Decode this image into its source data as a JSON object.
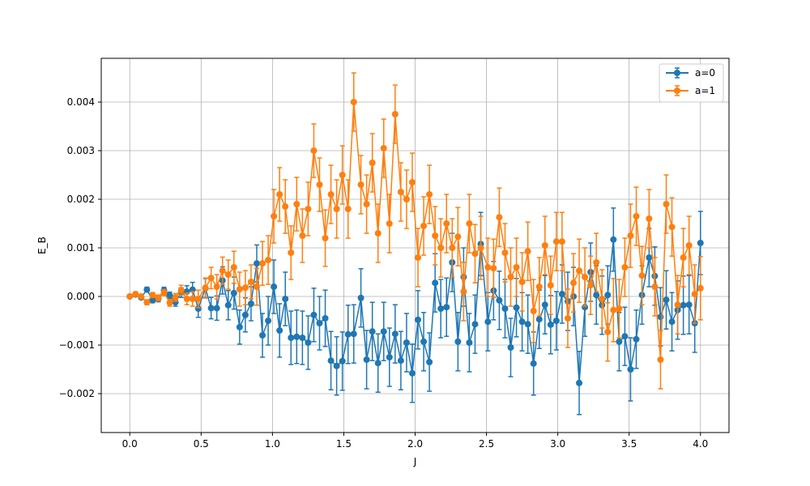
{
  "chart_data": {
    "type": "line",
    "xlabel": "J",
    "ylabel": "E_B",
    "xlim": [
      -0.2,
      4.2
    ],
    "ylim": [
      -0.0028,
      0.0049
    ],
    "xticks": [
      0.0,
      0.5,
      1.0,
      1.5,
      2.0,
      2.5,
      3.0,
      3.5,
      4.0
    ],
    "xtick_labels": [
      "0.0",
      "0.5",
      "1.0",
      "1.5",
      "2.0",
      "2.5",
      "3.0",
      "3.5",
      "4.0"
    ],
    "yticks": [
      -0.002,
      -0.001,
      0.0,
      0.001,
      0.002,
      0.003,
      0.004
    ],
    "ytick_labels": [
      "−0.002",
      "−0.001",
      "0.000",
      "0.001",
      "0.002",
      "0.003",
      "0.004"
    ],
    "grid": true,
    "legend_position": "top-right",
    "x": [
      0.0,
      0.04,
      0.08,
      0.12,
      0.16,
      0.2,
      0.24,
      0.28,
      0.32,
      0.36,
      0.4,
      0.44,
      0.48,
      0.53,
      0.57,
      0.61,
      0.65,
      0.69,
      0.73,
      0.77,
      0.81,
      0.85,
      0.89,
      0.93,
      0.97,
      1.01,
      1.05,
      1.09,
      1.13,
      1.17,
      1.21,
      1.25,
      1.29,
      1.33,
      1.37,
      1.41,
      1.45,
      1.49,
      1.53,
      1.57,
      1.62,
      1.66,
      1.7,
      1.74,
      1.78,
      1.82,
      1.86,
      1.9,
      1.94,
      1.98,
      2.02,
      2.06,
      2.1,
      2.14,
      2.18,
      2.22,
      2.26,
      2.3,
      2.34,
      2.38,
      2.42,
      2.46,
      2.51,
      2.55,
      2.59,
      2.63,
      2.67,
      2.71,
      2.75,
      2.79,
      2.83,
      2.87,
      2.91,
      2.95,
      2.99,
      3.03,
      3.07,
      3.11,
      3.15,
      3.19,
      3.23,
      3.27,
      3.31,
      3.35,
      3.39,
      3.43,
      3.47,
      3.51,
      3.55,
      3.59,
      3.64,
      3.68,
      3.72,
      3.76,
      3.8,
      3.84,
      3.88,
      3.92,
      3.96,
      4.0
    ],
    "series": [
      {
        "name": "a=0",
        "color": "#1f77b4",
        "values": [
          0.0,
          4e-05,
          -2e-05,
          0.00014,
          -8e-05,
          -5e-05,
          0.00013,
          2e-05,
          -0.00012,
          8e-05,
          0.0001,
          0.00014,
          -0.00025,
          0.00017,
          -0.00024,
          -0.00024,
          0.00033,
          -0.00018,
          7e-05,
          -0.00063,
          -0.00038,
          -0.00015,
          0.00068,
          -0.0008,
          -0.0005,
          0.0002,
          -0.0007,
          -5e-05,
          -0.00085,
          -0.00083,
          -0.00085,
          -0.00095,
          -0.00038,
          -0.00055,
          -0.00045,
          -0.00132,
          -0.00143,
          -0.00133,
          -0.00078,
          -0.00077,
          -3e-05,
          -0.0013,
          -0.00072,
          -0.00137,
          -0.00072,
          -0.00125,
          -0.00077,
          -0.00132,
          -0.00095,
          -0.00158,
          -0.00048,
          -0.00093,
          -0.00135,
          0.00028,
          -0.00025,
          -0.00022,
          0.0007,
          -0.00093,
          0.0004,
          -0.00095,
          -0.00057,
          0.00108,
          -0.00052,
          0.00012,
          -8e-05,
          -0.00025,
          -0.00105,
          -0.00023,
          -0.00052,
          -0.00057,
          -0.00138,
          -0.00047,
          -0.00017,
          -0.00058,
          -0.0005,
          5e-05,
          -0.0001,
          0.0,
          -0.00178,
          -0.00022,
          0.0005,
          3e-05,
          -0.00018,
          3e-05,
          0.00117,
          -0.00093,
          -0.00082,
          -0.0015,
          -0.00088,
          3e-05,
          0.0008,
          0.00042,
          -0.00042,
          -7e-05,
          -0.00052,
          -0.00028,
          -0.00018,
          -0.00017,
          -0.00055,
          0.0011
        ],
        "errors": [
          0.0,
          4e-05,
          4e-05,
          5e-05,
          5e-05,
          6e-05,
          6e-05,
          7e-05,
          8e-05,
          0.0001,
          0.00012,
          0.00015,
          0.00018,
          0.0002,
          0.00022,
          0.00025,
          0.00028,
          0.0003,
          0.00033,
          0.00035,
          0.00035,
          0.00035,
          0.00038,
          0.00045,
          0.0005,
          0.00055,
          0.00055,
          0.00055,
          0.00055,
          0.00055,
          0.00055,
          0.00055,
          0.00055,
          0.00055,
          0.00058,
          0.0006,
          0.0006,
          0.0006,
          0.0006,
          0.0006,
          0.0006,
          0.0006,
          0.0006,
          0.0006,
          0.0006,
          0.0006,
          0.0006,
          0.0006,
          0.0006,
          0.0006,
          0.0006,
          0.0006,
          0.0006,
          0.0006,
          0.0006,
          0.0006,
          0.0006,
          0.0006,
          0.0006,
          0.0006,
          0.0006,
          0.00065,
          0.0006,
          0.0006,
          0.0006,
          0.0006,
          0.0006,
          0.0006,
          0.0006,
          0.0006,
          0.00065,
          0.0006,
          0.0006,
          0.0006,
          0.0006,
          0.0006,
          0.0006,
          0.0006,
          0.00065,
          0.0006,
          0.0006,
          0.0006,
          0.0006,
          0.0006,
          0.00065,
          0.0006,
          0.0006,
          0.00065,
          0.0006,
          0.0006,
          0.0006,
          0.0006,
          0.0006,
          0.0006,
          0.0006,
          0.0006,
          0.0006,
          0.0006,
          0.0006,
          0.00065
        ]
      },
      {
        "name": "a=1",
        "color": "#ff7f0e",
        "values": [
          0.0,
          5e-05,
          0.0,
          -0.00012,
          3e-05,
          -3e-05,
          8e-05,
          -0.00013,
          -2e-05,
          0.00013,
          -5e-05,
          -5e-05,
          -5e-05,
          0.00018,
          0.00038,
          0.0002,
          0.00053,
          0.00045,
          0.0006,
          0.00015,
          0.00018,
          0.0003,
          0.0002,
          0.00068,
          0.00075,
          0.00165,
          0.0021,
          0.00185,
          0.0009,
          0.0019,
          0.00125,
          0.0018,
          0.003,
          0.0023,
          0.0012,
          0.0021,
          0.0018,
          0.0025,
          0.0018,
          0.004,
          0.0023,
          0.0019,
          0.00275,
          0.0013,
          0.00305,
          0.0015,
          0.00375,
          0.00215,
          0.002,
          0.00235,
          0.0008,
          0.00145,
          0.0021,
          0.00125,
          0.001,
          0.0015,
          0.001,
          0.00123,
          0.0001,
          0.0015,
          0.00088,
          0.001,
          0.0006,
          0.00058,
          0.00163,
          0.0009,
          0.0004,
          0.0006,
          0.0003,
          0.00093,
          -0.0003,
          0.0002,
          0.00105,
          0.00023,
          0.00113,
          0.00113,
          -0.00045,
          0.00028,
          0.00053,
          0.0004,
          0.00023,
          0.0007,
          -5e-05,
          -0.00073,
          -0.00028,
          -0.00025,
          0.0006,
          0.00125,
          0.00165,
          0.00043,
          0.0016,
          0.0002,
          -0.0013,
          0.0019,
          0.00143,
          -0.00017,
          0.0008,
          0.00105,
          5e-05,
          0.00017
        ],
        "errors": [
          0.0,
          4e-05,
          4e-05,
          5e-05,
          5e-05,
          6e-05,
          6e-05,
          7e-05,
          8e-05,
          0.0001,
          0.00012,
          0.00015,
          0.00018,
          0.0002,
          0.00022,
          0.00025,
          0.00028,
          0.0003,
          0.00033,
          0.00035,
          0.00035,
          0.00035,
          0.00038,
          0.00045,
          0.0005,
          0.00055,
          0.00055,
          0.00055,
          0.00055,
          0.00055,
          0.00055,
          0.00055,
          0.00055,
          0.00055,
          0.00058,
          0.0006,
          0.0006,
          0.0006,
          0.0006,
          0.0006,
          0.0006,
          0.0006,
          0.0006,
          0.0006,
          0.0006,
          0.0006,
          0.0006,
          0.0006,
          0.0006,
          0.0006,
          0.0006,
          0.0006,
          0.0006,
          0.0006,
          0.0006,
          0.0006,
          0.0006,
          0.0006,
          0.0006,
          0.0006,
          0.0006,
          0.00065,
          0.0006,
          0.0006,
          0.0006,
          0.0006,
          0.0006,
          0.0006,
          0.0006,
          0.0006,
          0.00065,
          0.0006,
          0.0006,
          0.0006,
          0.0006,
          0.0006,
          0.0006,
          0.0006,
          0.00065,
          0.0006,
          0.0006,
          0.0006,
          0.0006,
          0.0006,
          0.00065,
          0.0006,
          0.0006,
          0.00065,
          0.0006,
          0.0006,
          0.0006,
          0.0006,
          0.0006,
          0.0006,
          0.0006,
          0.0006,
          0.0006,
          0.0006,
          0.0006,
          0.00065
        ]
      }
    ]
  }
}
